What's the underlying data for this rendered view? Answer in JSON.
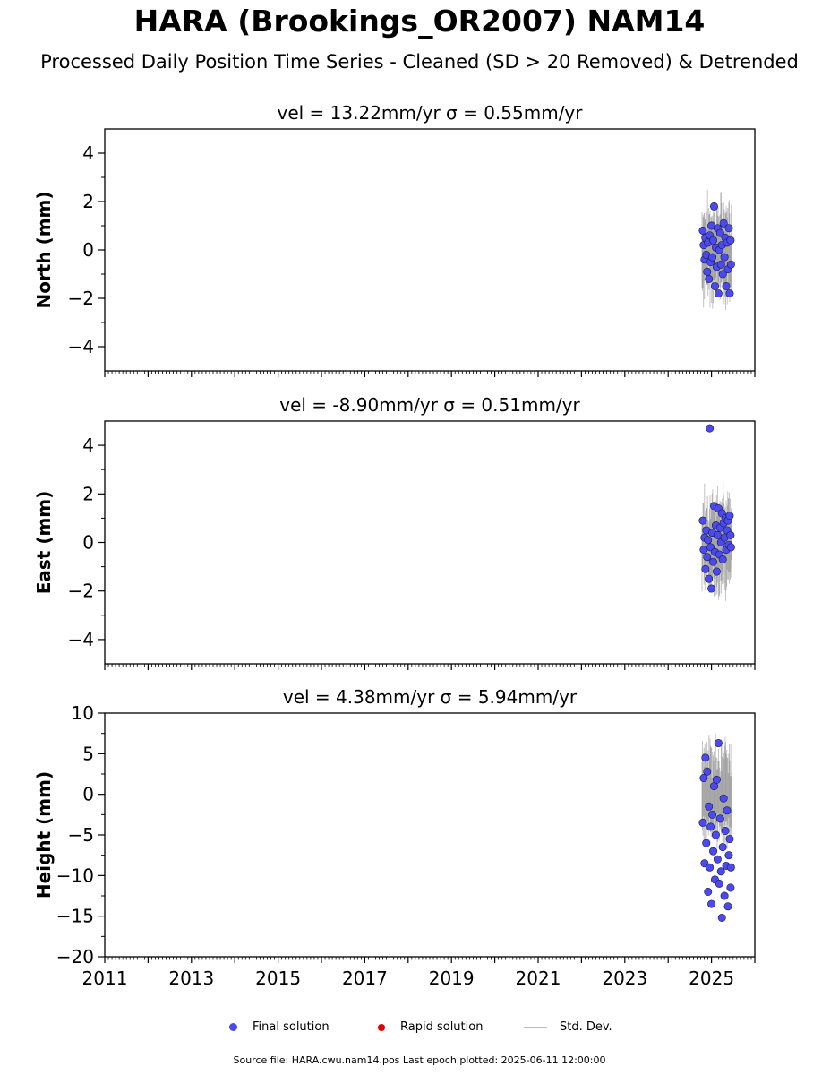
{
  "title": "HARA (Brookings_OR2007) NAM14",
  "subtitle": "Processed Daily Position Time Series - Cleaned (SD > 20 Removed) & Detrended",
  "footer": "Source file: HARA.cwu.nam14.pos  Last epoch plotted: 2025-06-11 12:00:00",
  "colors": {
    "final": "#4a4af0",
    "rapid": "#e00000",
    "stddev": "#aaaaaa"
  },
  "legend": [
    {
      "label": "Final solution",
      "color": "#4a4af0",
      "marker": "dot"
    },
    {
      "label": "Rapid solution",
      "color": "#e00000",
      "marker": "dot"
    },
    {
      "label": "Std. Dev.",
      "color": "#bbbbbb",
      "marker": "line"
    }
  ],
  "chart_data": [
    {
      "type": "scatter",
      "title": "vel = 13.22mm/yr   σ = 0.55mm/yr",
      "ylabel": "North (mm)",
      "xlabel": "",
      "xlim": [
        2011,
        2026
      ],
      "ylim": [
        -5,
        5
      ],
      "yticks": [
        -4,
        -2,
        0,
        2,
        4
      ],
      "xticks": [],
      "grid": false,
      "series": [
        {
          "points": [
            [
              2024.8,
              0.8
            ],
            [
              2024.82,
              0.2
            ],
            [
              2024.84,
              -0.4
            ],
            [
              2024.86,
              0.5
            ],
            [
              2024.88,
              -0.2
            ],
            [
              2024.9,
              -0.9
            ],
            [
              2024.92,
              0.3
            ],
            [
              2024.94,
              -1.2
            ],
            [
              2024.96,
              0.6
            ],
            [
              2024.98,
              -0.5
            ],
            [
              2025.0,
              1.0
            ],
            [
              2025.02,
              -0.3
            ],
            [
              2025.04,
              0.4
            ],
            [
              2025.06,
              1.8
            ],
            [
              2025.08,
              -1.5
            ],
            [
              2025.1,
              0.1
            ],
            [
              2025.12,
              -0.7
            ],
            [
              2025.14,
              0.9
            ],
            [
              2025.16,
              -1.8
            ],
            [
              2025.18,
              0.0
            ],
            [
              2025.2,
              0.7
            ],
            [
              2025.22,
              -0.6
            ],
            [
              2025.24,
              0.2
            ],
            [
              2025.26,
              -1.0
            ],
            [
              2025.28,
              1.1
            ],
            [
              2025.3,
              -0.3
            ],
            [
              2025.32,
              0.5
            ],
            [
              2025.34,
              -1.5
            ],
            [
              2025.36,
              0.3
            ],
            [
              2025.38,
              -0.8
            ],
            [
              2025.4,
              0.9
            ],
            [
              2025.42,
              -1.8
            ],
            [
              2025.44,
              0.4
            ],
            [
              2025.45,
              -0.6
            ]
          ]
        }
      ]
    },
    {
      "type": "scatter",
      "title": "vel = -8.90mm/yr   σ = 0.51mm/yr",
      "ylabel": "East (mm)",
      "xlabel": "",
      "xlim": [
        2011,
        2026
      ],
      "ylim": [
        -5,
        5
      ],
      "yticks": [
        -4,
        -2,
        0,
        2,
        4
      ],
      "xticks": [],
      "grid": false,
      "series": [
        {
          "points": [
            [
              2024.8,
              0.9
            ],
            [
              2024.82,
              -0.3
            ],
            [
              2024.84,
              0.2
            ],
            [
              2024.86,
              -1.1
            ],
            [
              2024.88,
              0.5
            ],
            [
              2024.9,
              -0.6
            ],
            [
              2024.92,
              0.1
            ],
            [
              2024.94,
              -1.5
            ],
            [
              2024.96,
              4.7
            ],
            [
              2024.98,
              -0.2
            ],
            [
              2025.0,
              -1.9
            ],
            [
              2025.02,
              0.4
            ],
            [
              2025.04,
              -0.8
            ],
            [
              2025.06,
              1.5
            ],
            [
              2025.08,
              -0.4
            ],
            [
              2025.1,
              0.7
            ],
            [
              2025.12,
              -1.2
            ],
            [
              2025.14,
              0.3
            ],
            [
              2025.16,
              1.4
            ],
            [
              2025.18,
              -0.5
            ],
            [
              2025.2,
              0.6
            ],
            [
              2025.22,
              0.0
            ],
            [
              2025.24,
              1.2
            ],
            [
              2025.26,
              -0.7
            ],
            [
              2025.28,
              0.8
            ],
            [
              2025.3,
              0.2
            ],
            [
              2025.32,
              1.0
            ],
            [
              2025.34,
              -0.3
            ],
            [
              2025.36,
              0.5
            ],
            [
              2025.38,
              0.9
            ],
            [
              2025.4,
              -0.1
            ],
            [
              2025.42,
              1.1
            ],
            [
              2025.44,
              0.3
            ],
            [
              2025.45,
              -0.2
            ]
          ]
        }
      ]
    },
    {
      "type": "scatter",
      "title": "vel = 4.38mm/yr   σ = 5.94mm/yr",
      "ylabel": "Height (mm)",
      "xlabel": "",
      "xlim": [
        2011,
        2026
      ],
      "ylim": [
        -20,
        10
      ],
      "yticks": [
        -20,
        -15,
        -10,
        -5,
        0,
        5,
        10
      ],
      "xticks": [
        "2011",
        "2013",
        "2015",
        "2017",
        "2019",
        "2021",
        "2023",
        "2025"
      ],
      "grid": false,
      "series": [
        {
          "points": [
            [
              2024.8,
              -3.5
            ],
            [
              2024.82,
              2.0
            ],
            [
              2024.84,
              -8.5
            ],
            [
              2024.86,
              4.5
            ],
            [
              2024.88,
              -6.0
            ],
            [
              2024.9,
              2.8
            ],
            [
              2024.92,
              -12.0
            ],
            [
              2024.94,
              -1.5
            ],
            [
              2024.96,
              -9.0
            ],
            [
              2024.98,
              -4.0
            ],
            [
              2025.0,
              -13.5
            ],
            [
              2025.02,
              -2.5
            ],
            [
              2025.04,
              -7.0
            ],
            [
              2025.06,
              1.0
            ],
            [
              2025.08,
              -10.5
            ],
            [
              2025.1,
              -5.0
            ],
            [
              2025.12,
              1.8
            ],
            [
              2025.14,
              -8.0
            ],
            [
              2025.16,
              6.3
            ],
            [
              2025.18,
              -11.0
            ],
            [
              2025.2,
              -3.0
            ],
            [
              2025.22,
              -9.5
            ],
            [
              2025.24,
              -15.2
            ],
            [
              2025.26,
              -6.5
            ],
            [
              2025.28,
              -0.5
            ],
            [
              2025.3,
              -12.5
            ],
            [
              2025.32,
              -4.5
            ],
            [
              2025.34,
              -8.8
            ],
            [
              2025.36,
              -2.0
            ],
            [
              2025.38,
              -13.8
            ],
            [
              2025.4,
              -7.5
            ],
            [
              2025.42,
              -5.5
            ],
            [
              2025.44,
              -11.5
            ],
            [
              2025.45,
              -9.0
            ]
          ]
        }
      ]
    }
  ]
}
